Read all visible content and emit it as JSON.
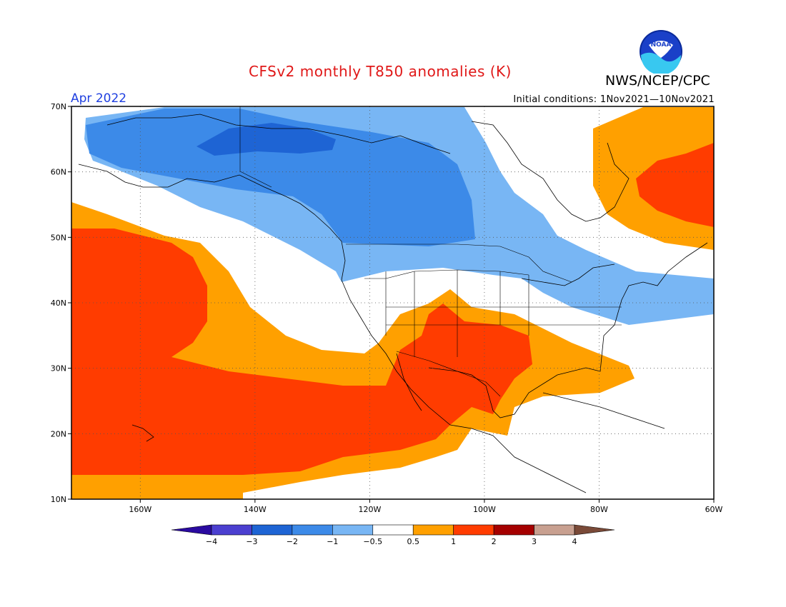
{
  "title": "CFSv2 monthly T850 anomalies (K)",
  "agency": "NWS/NCEP/CPC",
  "logo_text": "NOAA",
  "period": "Apr 2022",
  "initial_conditions": "Initial conditions:  1Nov2021—10Nov2021",
  "map": {
    "lon_range": [
      -172,
      -60
    ],
    "lat_range": [
      10,
      70
    ],
    "lon_ticks": [
      {
        "value": -160,
        "label": "160W"
      },
      {
        "value": -140,
        "label": "140W"
      },
      {
        "value": -120,
        "label": "120W"
      },
      {
        "value": -100,
        "label": "100W"
      },
      {
        "value": -80,
        "label": "80W"
      },
      {
        "value": -60,
        "label": "60W"
      }
    ],
    "lat_ticks": [
      {
        "value": 10,
        "label": "10N"
      },
      {
        "value": 20,
        "label": "20N"
      },
      {
        "value": 30,
        "label": "30N"
      },
      {
        "value": 40,
        "label": "40N"
      },
      {
        "value": 50,
        "label": "50N"
      },
      {
        "value": 60,
        "label": "60N"
      },
      {
        "value": 70,
        "label": "70N"
      }
    ],
    "gridlines": "dotted"
  },
  "colorbar": {
    "colors": [
      "#2a0aa0",
      "#4b3fd0",
      "#1e64d4",
      "#3c8ae8",
      "#78b6f4",
      "#ffffff",
      "#ffa000",
      "#ff3c00",
      "#a50000",
      "#c8a090",
      "#7a4a38"
    ],
    "labels": [
      "−4",
      "−3",
      "−2",
      "−1",
      "−0.5",
      "0.5",
      "1",
      "2",
      "3",
      "4"
    ]
  }
}
